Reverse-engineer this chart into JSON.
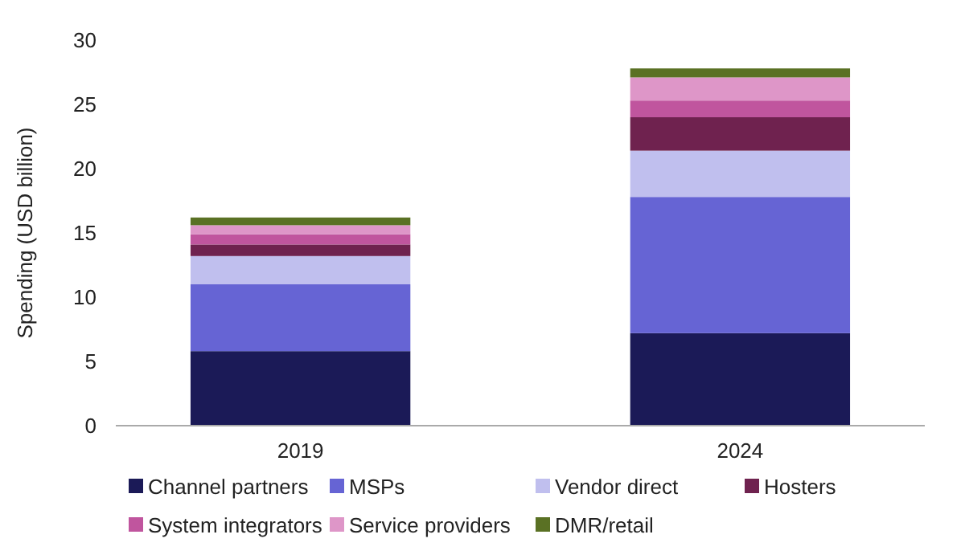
{
  "chart_data": {
    "type": "bar",
    "stacked": true,
    "ylabel": "Spending (USD billion)",
    "categories": [
      "2019",
      "2024"
    ],
    "series": [
      {
        "name": "Channel partners",
        "color": "#1b1a57",
        "values": [
          5.8,
          7.2
        ]
      },
      {
        "name": "MSPs",
        "color": "#6664d4",
        "values": [
          5.2,
          10.6
        ]
      },
      {
        "name": "Vendor direct",
        "color": "#c0bfee",
        "values": [
          2.2,
          3.6
        ]
      },
      {
        "name": "Hosters",
        "color": "#6f224f",
        "values": [
          0.9,
          2.6
        ]
      },
      {
        "name": "System integrators",
        "color": "#c0559e",
        "values": [
          0.8,
          1.3
        ]
      },
      {
        "name": "Service providers",
        "color": "#de96c8",
        "values": [
          0.7,
          1.8
        ]
      },
      {
        "name": "DMR/retail",
        "color": "#5a7124",
        "values": [
          0.6,
          0.7
        ]
      }
    ],
    "ylim": [
      0,
      30
    ],
    "yticks": [
      0,
      5,
      10,
      15,
      20,
      25,
      30
    ],
    "grid": false,
    "legend": "bottom"
  }
}
